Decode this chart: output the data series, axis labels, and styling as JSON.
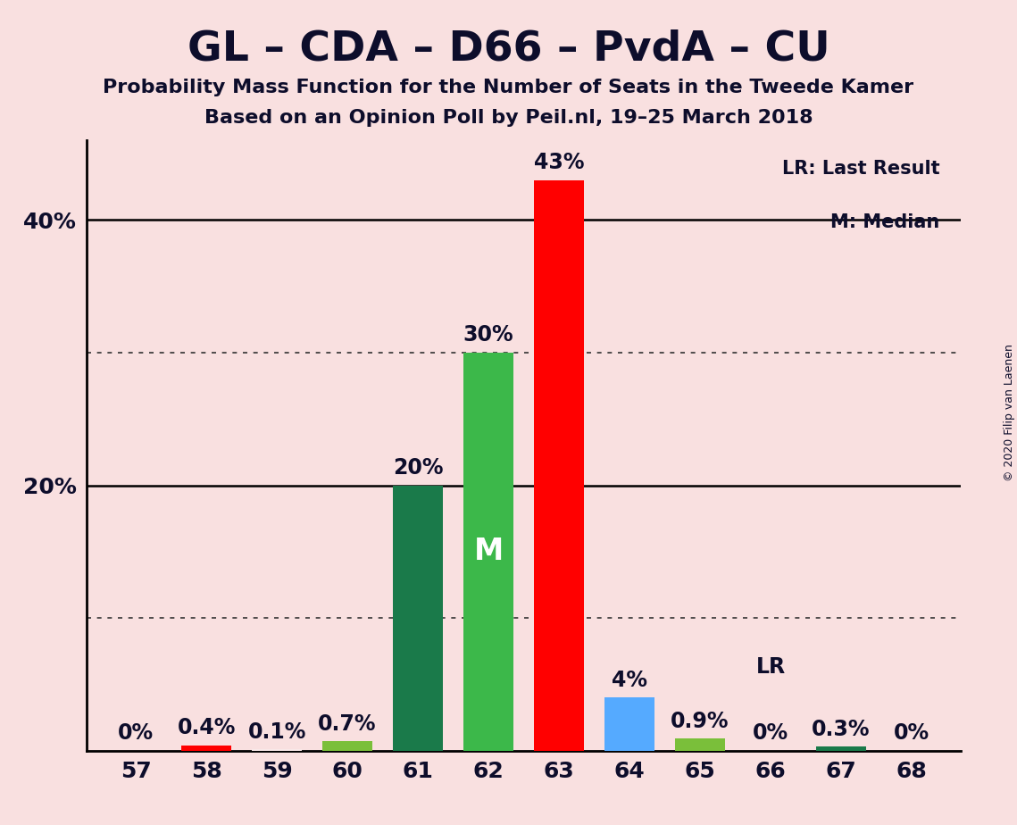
{
  "title": "GL – CDA – D66 – PvdA – CU",
  "subtitle1": "Probability Mass Function for the Number of Seats in the Tweede Kamer",
  "subtitle2": "Based on an Opinion Poll by Peil.nl, 19–25 March 2018",
  "copyright": "© 2020 Filip van Laenen",
  "categories": [
    57,
    58,
    59,
    60,
    61,
    62,
    63,
    64,
    65,
    66,
    67,
    68
  ],
  "values": [
    0.0,
    0.4,
    0.1,
    0.7,
    20.0,
    30.0,
    43.0,
    4.0,
    0.9,
    0.0,
    0.3,
    0.0
  ],
  "labels": [
    "0%",
    "0.4%",
    "0.1%",
    "0.7%",
    "20%",
    "30%",
    "43%",
    "4%",
    "0.9%",
    "0%",
    "0.3%",
    "0%"
  ],
  "bar_colors": [
    "#f9e8e8",
    "#ff0000",
    "#f9e8e8",
    "#7abf3a",
    "#1a7a4a",
    "#3cb84a",
    "#ff0000",
    "#55aaff",
    "#7abf3a",
    "#1a7a4a",
    "#1a7a4a",
    "#f9e8e8"
  ],
  "median_bar_idx": 5,
  "lr_bar_idx": 9,
  "lr_label": "LR",
  "median_label": "M",
  "background_color": "#f9e0e0",
  "ylim": [
    0,
    46
  ],
  "ytick_positions": [
    20.0,
    40.0
  ],
  "ytick_labels": [
    "20%",
    "40%"
  ],
  "solid_gridlines": [
    20.0,
    40.0
  ],
  "dotted_gridlines": [
    10.0,
    30.0
  ],
  "legend_text1": "LR: Last Result",
  "legend_text2": "M: Median"
}
